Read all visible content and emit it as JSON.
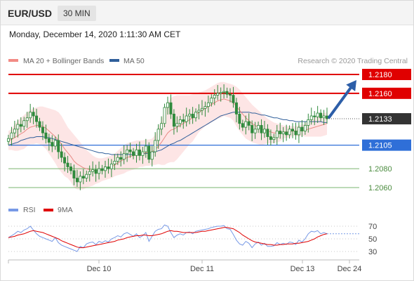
{
  "header": {
    "pair": "EUR/USD",
    "timeframe": "30 MIN",
    "datetime": "Monday, December 14, 2020 1:11:30 AM CET"
  },
  "colors": {
    "candle": "#2f8a3c",
    "ma20": "#e88a85",
    "bollinger_fill": "#fde0e0",
    "ma50": "#2f5e9a",
    "resistance": "#e00000",
    "support": "#2f6fd8",
    "target": "#7ab56f",
    "rsi": "#7799e6",
    "rsi_ma": "#e00000",
    "arrow": "#2d5ea8",
    "current_price_tag": "#333333"
  },
  "chart_data": [
    {
      "type": "candlestick",
      "legend": [
        {
          "name": "MA 20 + Bollinger Bands",
          "color": "#f28b85"
        },
        {
          "name": "MA 50",
          "color": "#2f5e9a"
        }
      ],
      "watermark": "Research © 2020 Trading Central",
      "x_ticks": [
        "Dec 10",
        "Dec 11",
        "Dec 13",
        "Dec 24"
      ],
      "ylim": [
        1.2045,
        1.219
      ],
      "current_price": "1.2133",
      "levels": [
        {
          "label": "1.2180",
          "value": 1.218,
          "kind": "resistance"
        },
        {
          "label": "1.2160",
          "value": 1.216,
          "kind": "resistance"
        },
        {
          "label": "1.2105",
          "value": 1.2105,
          "kind": "pivot"
        },
        {
          "label": "1.2080",
          "value": 1.208,
          "kind": "support"
        },
        {
          "label": "1.2060",
          "value": 1.206,
          "kind": "support"
        }
      ],
      "closes": [
        1.2112,
        1.2118,
        1.2122,
        1.2127,
        1.2125,
        1.2131,
        1.2134,
        1.214,
        1.2136,
        1.213,
        1.2124,
        1.2118,
        1.2112,
        1.2108,
        1.2104,
        1.211,
        1.2098,
        1.2092,
        1.2086,
        1.2082,
        1.2078,
        1.207,
        1.2066,
        1.2072,
        1.207,
        1.2074,
        1.2077,
        1.2079,
        1.2075,
        1.208,
        1.2078,
        1.2082,
        1.208,
        1.2085,
        1.2088,
        1.2092,
        1.209,
        1.2096,
        1.21,
        1.2098,
        1.2094,
        1.21,
        1.2094,
        1.2098,
        1.2104,
        1.209,
        1.2098,
        1.211,
        1.2122,
        1.2128,
        1.2145,
        1.215,
        1.2138,
        1.2125,
        1.2128,
        1.2132,
        1.213,
        1.2136,
        1.2138,
        1.2134,
        1.214,
        1.2142,
        1.2144,
        1.2146,
        1.215,
        1.2155,
        1.2158,
        1.216,
        1.2161,
        1.2162,
        1.2159,
        1.2158,
        1.215,
        1.2138,
        1.2128,
        1.2124,
        1.213,
        1.2126,
        1.2118,
        1.2122,
        1.2126,
        1.2118,
        1.2122,
        1.2114,
        1.2111,
        1.2113,
        1.212,
        1.2117,
        1.2119,
        1.2116,
        1.2122,
        1.212,
        1.2116,
        1.2124,
        1.212,
        1.2126,
        1.2132,
        1.2136,
        1.2135,
        1.2139,
        1.2134,
        1.2136,
        1.2133
      ],
      "ma20": [
        1.211,
        1.2111,
        1.2113,
        1.2115,
        1.2117,
        1.2119,
        1.2122,
        1.2124,
        1.2125,
        1.2126,
        1.2126,
        1.2125,
        1.2123,
        1.212,
        1.2117,
        1.2114,
        1.211,
        1.2106,
        1.2101,
        1.2097,
        1.2093,
        1.2088,
        1.2085,
        1.2083,
        1.2081,
        1.208,
        1.2079,
        1.2078,
        1.2078,
        1.2078,
        1.2079,
        1.208,
        1.2081,
        1.2082,
        1.2084,
        1.2086,
        1.2088,
        1.209,
        1.2092,
        1.2093,
        1.2094,
        1.2095,
        1.2096,
        1.2096,
        1.2097,
        1.2097,
        1.2098,
        1.21,
        1.2104,
        1.2108,
        1.2113,
        1.2118,
        1.2121,
        1.2122,
        1.2124,
        1.2126,
        1.2128,
        1.213,
        1.2132,
        1.2134,
        1.2137,
        1.214,
        1.2142,
        1.2144,
        1.2146,
        1.2148,
        1.215,
        1.2152,
        1.2153,
        1.2154,
        1.2153,
        1.2152,
        1.215,
        1.2146,
        1.2142,
        1.2138,
        1.2134,
        1.2131,
        1.2128,
        1.2126,
        1.2124,
        1.2122,
        1.2121,
        1.212,
        1.2119,
        1.2118,
        1.2118,
        1.2118,
        1.2119,
        1.2119,
        1.2119,
        1.212,
        1.212,
        1.212,
        1.2121,
        1.2121,
        1.2122,
        1.2123,
        1.2124,
        1.2125,
        1.2126,
        1.2127,
        1.2128
      ],
      "bb_upper": [
        1.212,
        1.2122,
        1.2127,
        1.2131,
        1.2134,
        1.2137,
        1.214,
        1.2142,
        1.2144,
        1.2145,
        1.2146,
        1.2146,
        1.2145,
        1.2144,
        1.2143,
        1.2142,
        1.214,
        1.2136,
        1.213,
        1.2124,
        1.212,
        1.2116,
        1.2112,
        1.2108,
        1.2104,
        1.21,
        1.2097,
        1.2094,
        1.2092,
        1.2091,
        1.2091,
        1.2092,
        1.2093,
        1.2094,
        1.2096,
        1.2099,
        1.2102,
        1.2105,
        1.2107,
        1.2108,
        1.2109,
        1.211,
        1.211,
        1.211,
        1.2111,
        1.2111,
        1.2112,
        1.2116,
        1.2123,
        1.2132,
        1.2142,
        1.215,
        1.2155,
        1.2157,
        1.2158,
        1.2158,
        1.2158,
        1.2158,
        1.2158,
        1.2159,
        1.216,
        1.2161,
        1.2162,
        1.2163,
        1.2165,
        1.2167,
        1.2169,
        1.2171,
        1.2172,
        1.2172,
        1.2171,
        1.217,
        1.2169,
        1.2167,
        1.2164,
        1.216,
        1.2156,
        1.2152,
        1.2148,
        1.2145,
        1.2142,
        1.2139,
        1.2136,
        1.2133,
        1.2131,
        1.2129,
        1.2128,
        1.2127,
        1.2126,
        1.2125,
        1.2125,
        1.2125,
        1.2125,
        1.2126,
        1.2127,
        1.2128,
        1.213,
        1.2132,
        1.2134,
        1.2136,
        1.2138,
        1.2139,
        1.214
      ],
      "bb_lower": [
        1.21,
        1.21,
        1.2099,
        1.2099,
        1.21,
        1.2101,
        1.2104,
        1.2106,
        1.2106,
        1.2107,
        1.2106,
        1.2104,
        1.2101,
        1.2096,
        1.2091,
        1.2086,
        1.208,
        1.2076,
        1.2072,
        1.207,
        1.2066,
        1.206,
        1.2058,
        1.2058,
        1.2058,
        1.206,
        1.2061,
        1.2062,
        1.2064,
        1.2065,
        1.2067,
        1.2068,
        1.2069,
        1.207,
        1.2072,
        1.2073,
        1.2074,
        1.2075,
        1.2077,
        1.2078,
        1.2079,
        1.208,
        1.2082,
        1.2082,
        1.2083,
        1.2083,
        1.2084,
        1.2084,
        1.2085,
        1.2084,
        1.2084,
        1.2086,
        1.2087,
        1.2087,
        1.209,
        1.2094,
        1.2098,
        1.2102,
        1.2106,
        1.2109,
        1.2114,
        1.2119,
        1.2122,
        1.2125,
        1.2127,
        1.2129,
        1.2131,
        1.2133,
        1.2134,
        1.2136,
        1.2135,
        1.2134,
        1.2131,
        1.2125,
        1.212,
        1.2116,
        1.2112,
        1.211,
        1.2108,
        1.2107,
        1.2106,
        1.2105,
        1.2106,
        1.2107,
        1.2107,
        1.2107,
        1.2108,
        1.2109,
        1.2112,
        1.2113,
        1.2113,
        1.2115,
        1.2115,
        1.2114,
        1.2115,
        1.2114,
        1.2114,
        1.2114,
        1.2114,
        1.2114,
        1.2114,
        1.2115,
        1.2116
      ],
      "ma50": [
        1.2105,
        1.2106,
        1.2107,
        1.2108,
        1.211,
        1.2111,
        1.2112,
        1.2113,
        1.2113,
        1.2114,
        1.2114,
        1.2114,
        1.2113,
        1.2113,
        1.2112,
        1.2111,
        1.211,
        1.2109,
        1.2108,
        1.2107,
        1.2106,
        1.2105,
        1.2104,
        1.2103,
        1.2102,
        1.2101,
        1.21,
        1.2099,
        1.2098,
        1.2097,
        1.2097,
        1.2096,
        1.2096,
        1.2095,
        1.2095,
        1.2095,
        1.2095,
        1.2095,
        1.2095,
        1.2095,
        1.2095,
        1.2095,
        1.2096,
        1.2096,
        1.2096,
        1.2097,
        1.2097,
        1.2098,
        1.2099,
        1.21,
        1.2102,
        1.2104,
        1.2106,
        1.2107,
        1.2109,
        1.211,
        1.2112,
        1.2114,
        1.2116,
        1.2118,
        1.212,
        1.2122,
        1.2124,
        1.2126,
        1.2128,
        1.213,
        1.2132,
        1.2134,
        1.2136,
        1.2137,
        1.2138,
        1.2139,
        1.214,
        1.214,
        1.214,
        1.214,
        1.214,
        1.214,
        1.2139,
        1.2139,
        1.2138,
        1.2137,
        1.2137,
        1.2136,
        1.2135,
        1.2134,
        1.2134,
        1.2133,
        1.2132,
        1.2132,
        1.2131,
        1.2131,
        1.213,
        1.213,
        1.213,
        1.213,
        1.213,
        1.213,
        1.213,
        1.213,
        1.213,
        1.2129,
        1.2129
      ],
      "arrow": {
        "from": 1.2133,
        "to": 1.218
      }
    },
    {
      "type": "line",
      "legend": [
        {
          "name": "RSI",
          "color": "#7799e6"
        },
        {
          "name": "9MA",
          "color": "#e00000"
        }
      ],
      "y_ticks": [
        "70",
        "50",
        "30"
      ],
      "ylim": [
        22,
        78
      ],
      "rsi": [
        52,
        55,
        58,
        62,
        60,
        64,
        66,
        70,
        64,
        58,
        54,
        52,
        50,
        48,
        46,
        52,
        44,
        40,
        38,
        36,
        34,
        32,
        30,
        38,
        36,
        42,
        44,
        45,
        41,
        46,
        44,
        47,
        45,
        50,
        52,
        55,
        53,
        58,
        60,
        57,
        54,
        58,
        52,
        55,
        60,
        46,
        54,
        62,
        65,
        66,
        72,
        70,
        60,
        52,
        56,
        58,
        56,
        60,
        61,
        58,
        62,
        63,
        64,
        65,
        66,
        68,
        69,
        70,
        70,
        71,
        66,
        65,
        57,
        48,
        42,
        40,
        46,
        43,
        36,
        42,
        45,
        40,
        43,
        38,
        38,
        39,
        44,
        41,
        43,
        41,
        45,
        44,
        41,
        48,
        45,
        50,
        58,
        62,
        61,
        63,
        58,
        60,
        58
      ],
      "rsi_ma": [
        52,
        53,
        54,
        56,
        57,
        58,
        60,
        62,
        63,
        62,
        61,
        60,
        58,
        56,
        54,
        52,
        50,
        47,
        45,
        43,
        41,
        39,
        37,
        36,
        36,
        37,
        38,
        39,
        40,
        41,
        42,
        43,
        44,
        45,
        46,
        48,
        49,
        50,
        52,
        53,
        54,
        55,
        55,
        56,
        56,
        55,
        55,
        56,
        57,
        58,
        60,
        62,
        63,
        62,
        62,
        61,
        60,
        60,
        60,
        60,
        60,
        61,
        62,
        62,
        63,
        64,
        65,
        66,
        67,
        68,
        68,
        67,
        66,
        63,
        60,
        56,
        53,
        50,
        47,
        45,
        44,
        43,
        42,
        41,
        41,
        40,
        40,
        41,
        41,
        42,
        42,
        42,
        43,
        43,
        44,
        45,
        46,
        48,
        50,
        53,
        55,
        57,
        58
      ]
    }
  ]
}
